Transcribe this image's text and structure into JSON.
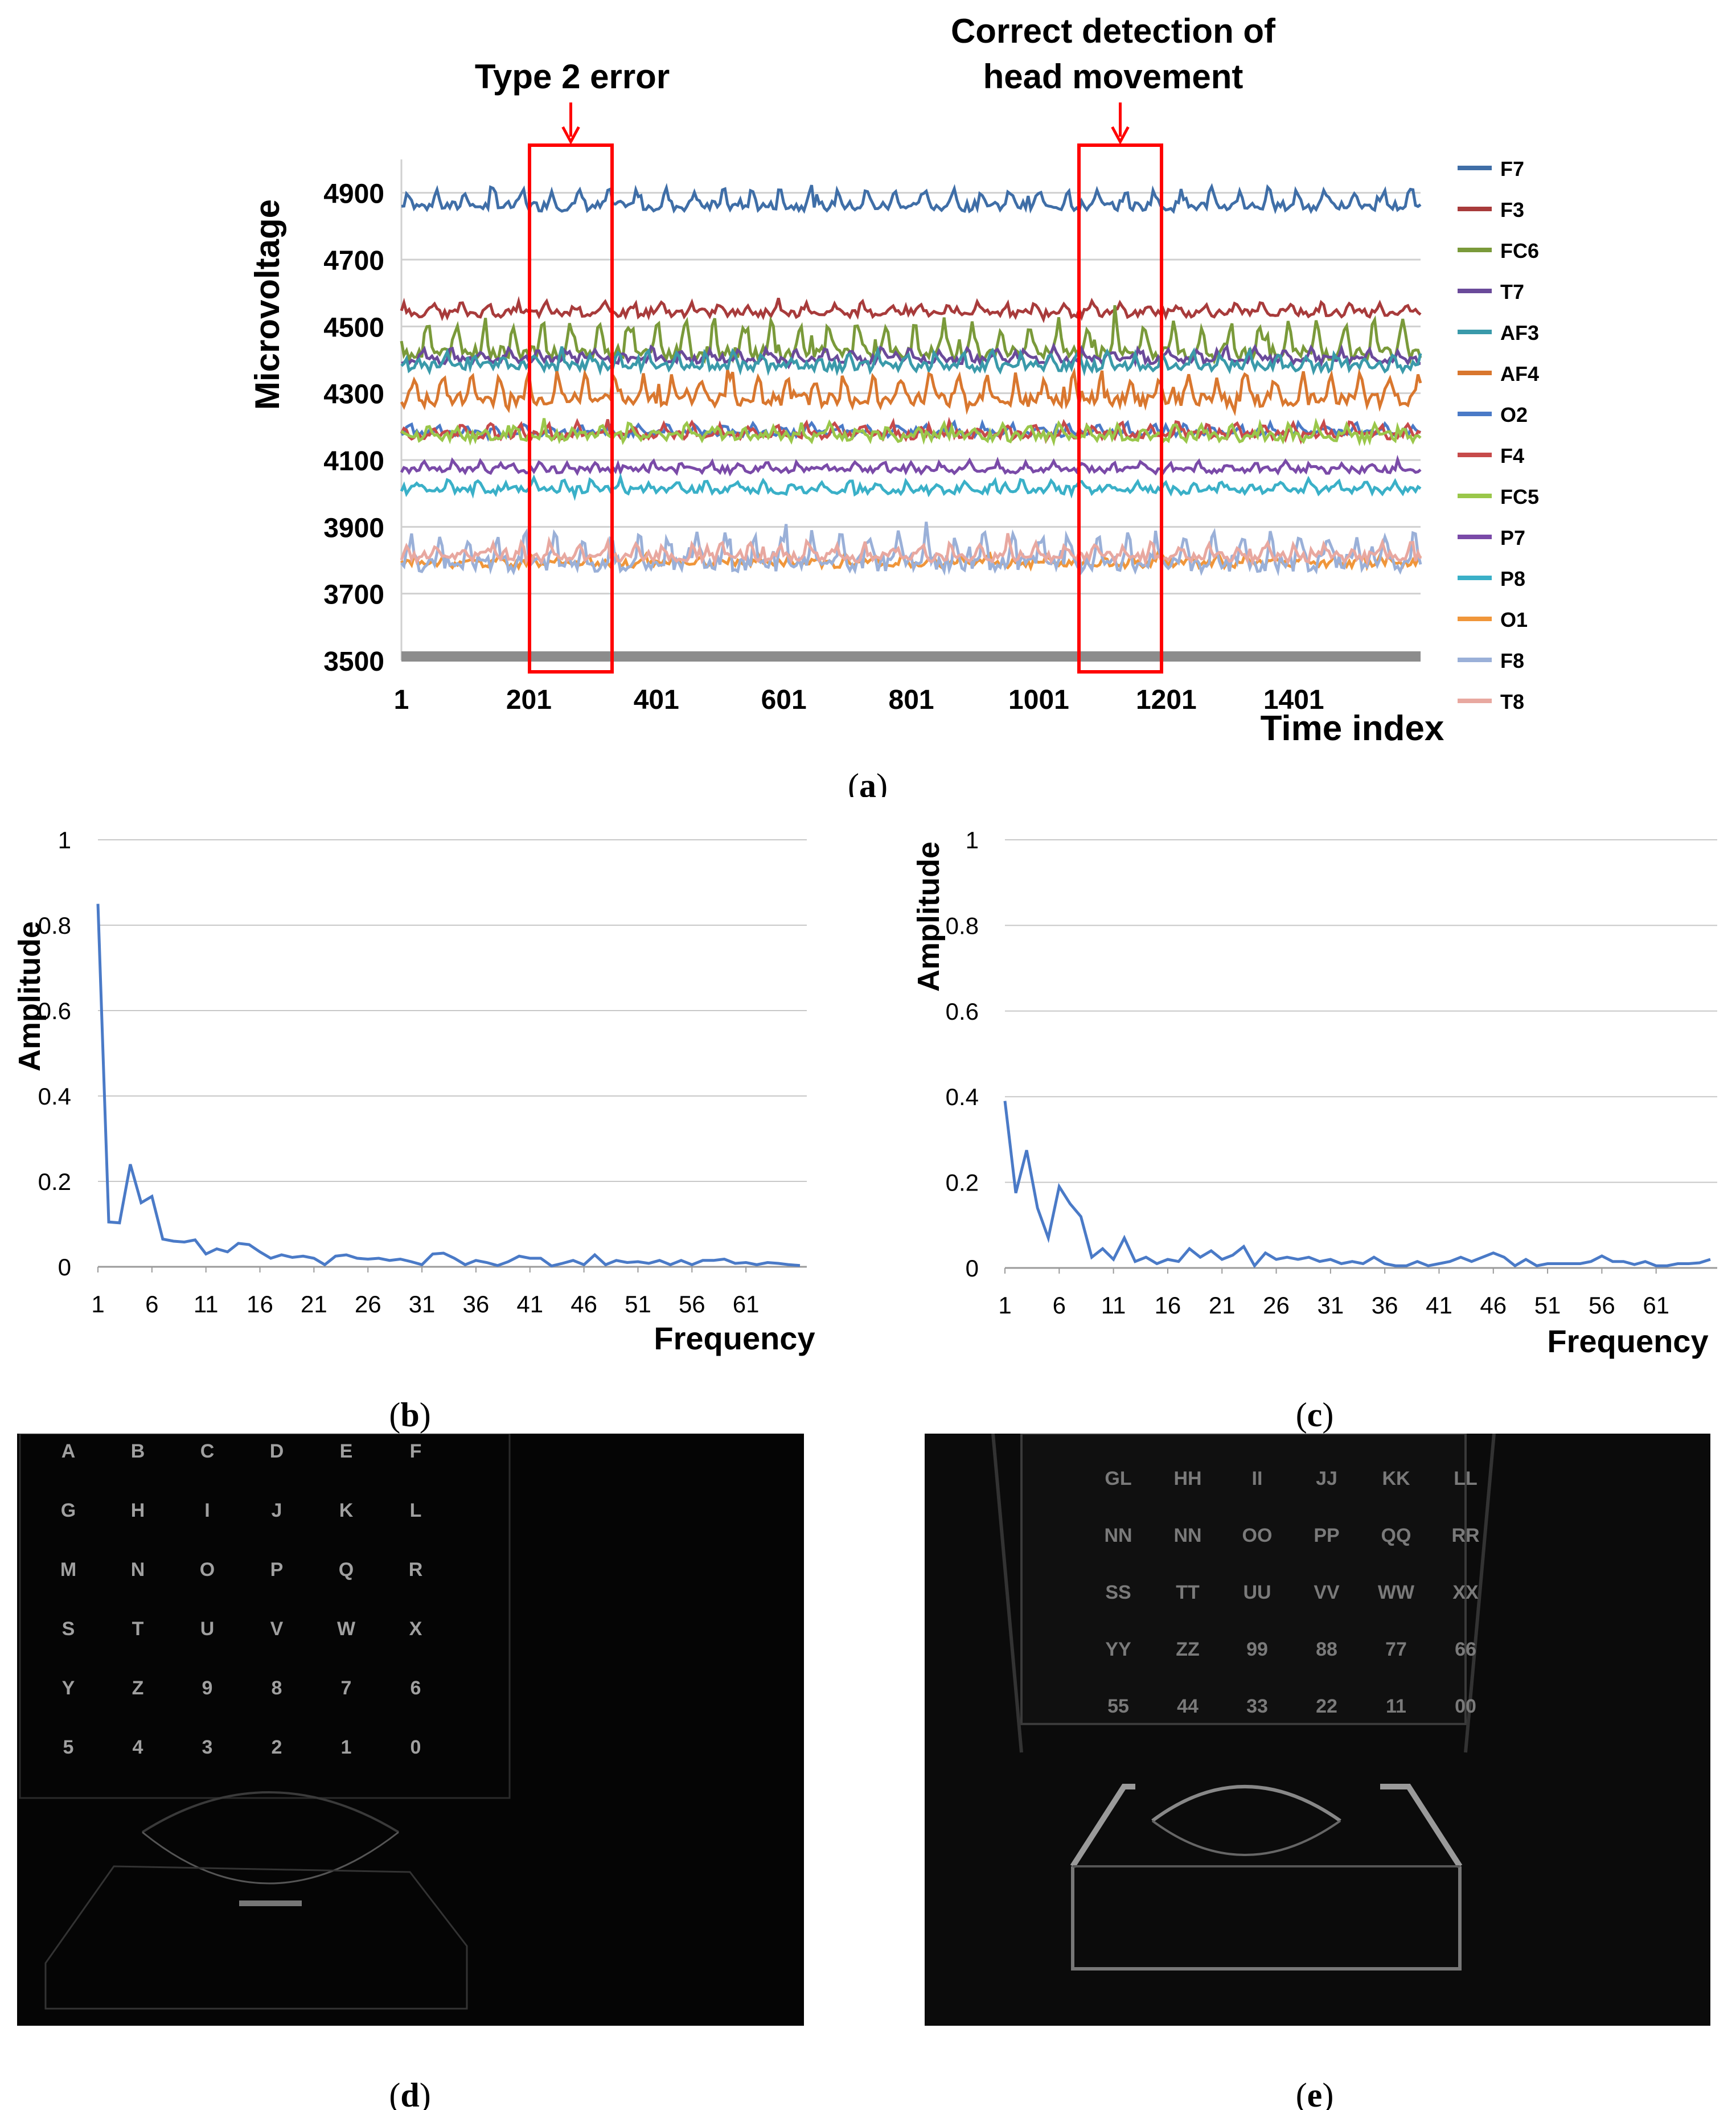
{
  "figure": {
    "panel_labels": [
      "a",
      "b",
      "c",
      "d",
      "e"
    ]
  },
  "chart_data": [
    {
      "id": "a",
      "type": "line",
      "xlabel": "Time index",
      "ylabel": "Microvoltage",
      "xlim": [
        1,
        1600
      ],
      "ylim": [
        3500,
        5000
      ],
      "yticks": [
        3500,
        3700,
        3900,
        4100,
        4300,
        4500,
        4700,
        4900
      ],
      "xticks": [
        1,
        201,
        401,
        601,
        801,
        1001,
        1201,
        1401
      ],
      "annotations": [
        {
          "label": "Type 2 error",
          "x_range": [
            200,
            330
          ]
        },
        {
          "label": "Correct detection of head movement",
          "x_range": [
            1050,
            1180
          ]
        }
      ],
      "series": [
        {
          "name": "F7",
          "color": "#3f6ea7",
          "baseline": 4860,
          "amplitude": 45,
          "noise": 15
        },
        {
          "name": "F3",
          "color": "#a83b3b",
          "baseline": 4540,
          "amplitude": 25,
          "noise": 12
        },
        {
          "name": "FC6",
          "color": "#7a9a3a",
          "baseline": 4420,
          "amplitude": 90,
          "noise": 20
        },
        {
          "name": "T7",
          "color": "#6a4a9a",
          "baseline": 4400,
          "amplitude": 30,
          "noise": 12
        },
        {
          "name": "AF3",
          "color": "#3a9aaa",
          "baseline": 4380,
          "amplitude": 35,
          "noise": 15
        },
        {
          "name": "AF4",
          "color": "#d9772e",
          "baseline": 4280,
          "amplitude": 70,
          "noise": 20
        },
        {
          "name": "O2",
          "color": "#4a7ac7",
          "baseline": 4180,
          "amplitude": 25,
          "noise": 10
        },
        {
          "name": "F4",
          "color": "#c74a4a",
          "baseline": 4175,
          "amplitude": 30,
          "noise": 12
        },
        {
          "name": "FC5",
          "color": "#9ac74a",
          "baseline": 4170,
          "amplitude": 30,
          "noise": 15
        },
        {
          "name": "P7",
          "color": "#7a4aa8",
          "baseline": 4070,
          "amplitude": 20,
          "noise": 10
        },
        {
          "name": "P8",
          "color": "#3ab0c8",
          "baseline": 4010,
          "amplitude": 25,
          "noise": 12
        },
        {
          "name": "O1",
          "color": "#f0963a",
          "baseline": 3790,
          "amplitude": 20,
          "noise": 12
        },
        {
          "name": "F8",
          "color": "#9ab0d8",
          "baseline": 3790,
          "amplitude": 80,
          "noise": 25
        },
        {
          "name": "T8",
          "color": "#e8a8a0",
          "baseline": 3810,
          "amplitude": 35,
          "noise": 15
        }
      ]
    },
    {
      "id": "b",
      "type": "line",
      "xlabel": "Frequency",
      "ylabel": "Amplitude",
      "ylim": [
        0,
        1
      ],
      "yticks": [
        0,
        0.2,
        0.4,
        0.6,
        0.8,
        1
      ],
      "xticks": [
        1,
        6,
        11,
        16,
        21,
        26,
        31,
        36,
        41,
        46,
        51,
        56,
        61
      ],
      "color": "#4a7ac7",
      "x_start": 1,
      "values": [
        0.85,
        0.105,
        0.103,
        0.24,
        0.15,
        0.165,
        0.065,
        0.06,
        0.058,
        0.063,
        0.03,
        0.042,
        0.035,
        0.055,
        0.052,
        0.035,
        0.02,
        0.028,
        0.022,
        0.025,
        0.02,
        0.005,
        0.025,
        0.028,
        0.02,
        0.018,
        0.02,
        0.015,
        0.018,
        0.012,
        0.005,
        0.03,
        0.032,
        0.02,
        0.005,
        0.015,
        0.01,
        0.003,
        0.012,
        0.025,
        0.02,
        0.02,
        0.002,
        0.008,
        0.015,
        0.005,
        0.028,
        0.005,
        0.015,
        0.01,
        0.012,
        0.008,
        0.015,
        0.005,
        0.015,
        0.005,
        0.015,
        0.015,
        0.018,
        0.008,
        0.01,
        0.005,
        0.01,
        0.008,
        0.005,
        0.003
      ]
    },
    {
      "id": "c",
      "type": "line",
      "xlabel": "Frequency",
      "ylabel": "Amplitude",
      "ylim": [
        0,
        1
      ],
      "yticks": [
        0,
        0.2,
        0.4,
        0.6,
        0.8,
        1
      ],
      "xticks": [
        1,
        6,
        11,
        16,
        21,
        26,
        31,
        36,
        41,
        46,
        51,
        56,
        61
      ],
      "color": "#4a7ac7",
      "x_start": 1,
      "values": [
        0.39,
        0.175,
        0.275,
        0.14,
        0.07,
        0.19,
        0.15,
        0.12,
        0.025,
        0.045,
        0.02,
        0.07,
        0.015,
        0.025,
        0.01,
        0.02,
        0.015,
        0.045,
        0.025,
        0.04,
        0.02,
        0.03,
        0.05,
        0.005,
        0.035,
        0.02,
        0.025,
        0.02,
        0.025,
        0.015,
        0.02,
        0.01,
        0.015,
        0.01,
        0.025,
        0.01,
        0.005,
        0.005,
        0.015,
        0.005,
        0.01,
        0.015,
        0.025,
        0.015,
        0.025,
        0.035,
        0.025,
        0.005,
        0.02,
        0.005,
        0.01,
        0.01,
        0.01,
        0.01,
        0.015,
        0.028,
        0.015,
        0.015,
        0.008,
        0.015,
        0.005,
        0.005,
        0.01,
        0.01,
        0.012,
        0.02
      ]
    }
  ],
  "images": {
    "d": {
      "keyboard_rows": [
        [
          "A",
          "B",
          "C",
          "D",
          "E",
          "F"
        ],
        [
          "G",
          "H",
          "I",
          "J",
          "K",
          "L"
        ],
        [
          "M",
          "N",
          "O",
          "P",
          "Q",
          "R"
        ],
        [
          "S",
          "T",
          "U",
          "V",
          "W",
          "X"
        ],
        [
          "Y",
          "Z",
          "9",
          "8",
          "7",
          "6"
        ],
        [
          "5",
          "4",
          "3",
          "2",
          "1",
          "0"
        ]
      ]
    },
    "e": {
      "keyboard_rows": [
        [
          "GL",
          "HH",
          "II",
          "JJ",
          "KK",
          "LL"
        ],
        [
          "NN",
          "NN",
          "OO",
          "PP",
          "QQ",
          "RR"
        ],
        [
          "SS",
          "TT",
          "UU",
          "VV",
          "WW",
          "XX"
        ],
        [
          "YY",
          "ZZ",
          "99",
          "88",
          "77",
          "66"
        ],
        [
          "55",
          "44",
          "33",
          "22",
          "11",
          "00"
        ]
      ]
    }
  }
}
